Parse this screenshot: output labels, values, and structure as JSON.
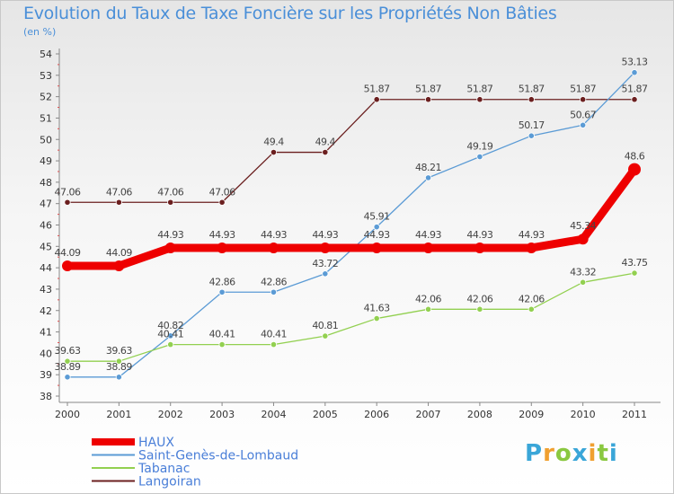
{
  "chart_data": {
    "type": "line",
    "title": "Evolution du Taux de Taxe Foncière sur les Propriétés Non Bâties",
    "unit_label": "(en %)",
    "x": [
      "2000",
      "2001",
      "2002",
      "2003",
      "2004",
      "2005",
      "2006",
      "2007",
      "2008",
      "2009",
      "2010",
      "2011"
    ],
    "ylim": [
      38,
      54
    ],
    "yticks": [
      38,
      39,
      40,
      41,
      42,
      43,
      44,
      45,
      46,
      47,
      48,
      49,
      50,
      51,
      52,
      53,
      54
    ],
    "grid": false,
    "legend_position": "bottom-left",
    "series": [
      {
        "name": "Langoiran",
        "color": "#6b1f1f",
        "values": [
          47.06,
          47.06,
          47.06,
          47.06,
          49.4,
          49.4,
          51.87,
          51.87,
          51.87,
          51.87,
          51.87,
          51.87
        ],
        "labels": [
          "47.06",
          "47.06",
          "47.06",
          "47.06",
          "49.4",
          "49.4",
          "51.87",
          "51.87",
          "51.87",
          "51.87",
          "51.87",
          "51.87"
        ]
      },
      {
        "name": "Saint-Genès-de-Lombaud",
        "color": "#5b9bd5",
        "values": [
          38.89,
          38.89,
          40.82,
          42.86,
          42.86,
          43.72,
          45.91,
          48.21,
          49.19,
          50.17,
          50.67,
          53.13
        ],
        "labels": [
          "38.89",
          "38.89",
          "40.82",
          "42.86",
          "42.86",
          "43.72",
          "45.91",
          "48.21",
          "49.19",
          "50.17",
          "50.67",
          "53.13"
        ]
      },
      {
        "name": "Tabanac",
        "color": "#92d050",
        "values": [
          39.63,
          39.63,
          40.41,
          40.41,
          40.41,
          40.81,
          41.63,
          42.06,
          42.06,
          42.06,
          43.32,
          43.75
        ],
        "labels": [
          "39.63",
          "39.63",
          "40.41",
          "40.41",
          "40.41",
          "40.81",
          "41.63",
          "42.06",
          "42.06",
          "42.06",
          "43.32",
          "43.75"
        ]
      },
      {
        "name": "HAUX",
        "color": "#ee0000",
        "values": [
          44.09,
          44.09,
          44.93,
          44.93,
          44.93,
          44.93,
          44.93,
          44.93,
          44.93,
          44.93,
          45.34,
          48.6
        ],
        "labels": [
          "44.09",
          "44.09",
          "44.93",
          "44.93",
          "44.93",
          "44.93",
          "44.93",
          "44.93",
          "44.93",
          "44.93",
          "45.34",
          "48.6"
        ]
      }
    ],
    "legend": [
      {
        "name": "HAUX",
        "color": "#ee0000"
      },
      {
        "name": "Saint-Genès-de-Lombaud",
        "color": "#5b9bd5"
      },
      {
        "name": "Tabanac",
        "color": "#92d050"
      },
      {
        "name": "Langoiran",
        "color": "#6b1f1f"
      }
    ]
  },
  "logo": {
    "letters": [
      "P",
      "r",
      "o",
      "x",
      "i",
      "t",
      "i"
    ],
    "colors": [
      "#3aa6d8",
      "#f0a030",
      "#8ac840",
      "#3aa6d8",
      "#f0a030",
      "#8ac840",
      "#3aa6d8"
    ]
  }
}
